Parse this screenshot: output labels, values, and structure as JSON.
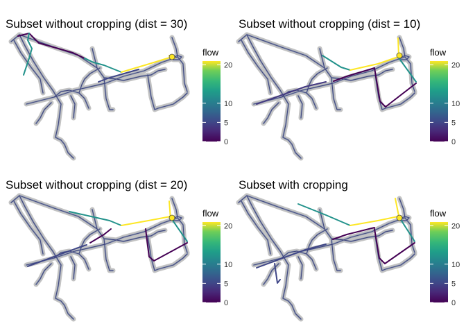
{
  "chart_data": [
    {
      "type": "network-map",
      "title": "Subset without cropping (dist = 30)",
      "legend": {
        "title": "flow",
        "ticks": [
          0,
          5,
          10,
          20
        ],
        "range": [
          0,
          21
        ],
        "colormap": "viridis",
        "placement": "right"
      },
      "grid": false,
      "series": [
        {
          "flow": 0,
          "roads": [
            [
              [
                26,
                52
              ],
              [
                42,
                48
              ],
              [
                56,
                62
              ],
              [
                105,
                76
              ],
              [
                122,
                84
              ]
            ]
          ]
        },
        {
          "flow": 5,
          "roads": [
            [
              [
                142,
                118
              ],
              [
                158,
                112
              ],
              [
                200,
                100
              ]
            ]
          ]
        },
        {
          "flow": 12,
          "roads": [
            [
              [
                42,
                48
              ],
              [
                40,
                58
              ],
              [
                46,
                70
              ],
              [
                42,
                84
              ],
              [
                34,
                108
              ]
            ],
            [
              [
                122,
                84
              ],
              [
                135,
                90
              ],
              [
                150,
                94
              ],
              [
                175,
                104
              ]
            ]
          ]
        },
        {
          "flow": 21,
          "roads": [
            [
              [
                175,
                104
              ],
              [
                212,
                93
              ],
              [
                248,
                82
              ]
            ],
            [
              [
                244,
                80
              ],
              [
                252,
                84
              ]
            ]
          ]
        }
      ]
    },
    {
      "type": "network-map",
      "title": "Subset without cropping (dist = 10)",
      "legend": {
        "title": "flow",
        "ticks": [
          0,
          5,
          10,
          20
        ],
        "range": [
          0,
          21
        ],
        "colormap": "viridis",
        "placement": "right"
      },
      "grid": false,
      "series": [
        {
          "flow": 0,
          "roads": [
            [
              [
                481,
                117
              ],
              [
                500,
                110
              ],
              [
                540,
                98
              ]
            ],
            [
              [
                540,
                98
              ],
              [
                548,
                146
              ],
              [
                556,
                154
              ],
              [
                600,
                120
              ]
            ]
          ]
        },
        {
          "flow": 4,
          "roads": [
            [
              [
                370,
                150
              ],
              [
                440,
                125
              ],
              [
                470,
                118
              ]
            ]
          ]
        },
        {
          "flow": 12,
          "roads": [
            [
              [
                465,
                80
              ],
              [
                492,
                97
              ],
              [
                505,
                101
              ]
            ],
            [
              [
                574,
                82
              ],
              [
                600,
                118
              ]
            ]
          ]
        },
        {
          "flow": 21,
          "roads": [
            [
              [
                505,
                101
              ],
              [
                545,
                92
              ],
              [
                574,
                82
              ]
            ],
            [
              [
                574,
                55
              ],
              [
                575,
                80
              ]
            ]
          ]
        }
      ]
    },
    {
      "type": "network-map",
      "title": "Subset without cropping (dist = 20)",
      "legend": {
        "title": "flow",
        "ticks": [
          0,
          5,
          10,
          20
        ],
        "range": [
          0,
          21
        ],
        "colormap": "viridis",
        "placement": "right"
      },
      "grid": false,
      "series": [
        {
          "flow": 0,
          "roads": [
            [
              [
                130,
                350
              ],
              [
                150,
                338
              ],
              [
                160,
                330
              ]
            ],
            [
              [
                210,
                330
              ],
              [
                215,
                370
              ],
              [
                222,
                376
              ],
              [
                270,
                350
              ]
            ]
          ]
        },
        {
          "flow": 5,
          "roads": [
            [
              [
                40,
                384
              ],
              [
                110,
                358
              ],
              [
                125,
                353
              ]
            ]
          ]
        },
        {
          "flow": 12,
          "roads": [
            [
              [
                100,
                305
              ],
              [
                158,
                318
              ],
              [
                175,
                325
              ]
            ],
            [
              [
                245,
                312
              ],
              [
                270,
                348
              ]
            ]
          ]
        },
        {
          "flow": 21,
          "roads": [
            [
              [
                175,
                325
              ],
              [
                214,
                318
              ],
              [
                246,
                312
              ]
            ],
            [
              [
                244,
                290
              ],
              [
                246,
                316
              ]
            ]
          ]
        }
      ]
    },
    {
      "type": "network-map",
      "title": "Subset with cropping",
      "legend": {
        "title": "flow",
        "ticks": [
          0,
          5,
          10,
          20
        ],
        "range": [
          0,
          21
        ],
        "colormap": "viridis",
        "placement": "right"
      },
      "grid": false,
      "series": [
        {
          "flow": 0,
          "roads": [
            [
              [
                480,
                345
              ],
              [
                500,
                338
              ],
              [
                540,
                328
              ]
            ],
            [
              [
                540,
                330
              ],
              [
                547,
                372
              ],
              [
                555,
                380
              ],
              [
                598,
                350
              ]
            ]
          ]
        },
        {
          "flow": 5,
          "roads": [
            [
              [
                370,
                386
              ],
              [
                440,
                360
              ],
              [
                470,
                352
              ]
            ],
            [
              [
                396,
                380
              ],
              [
                400,
                408
              ],
              [
                404,
                403
              ]
            ]
          ]
        },
        {
          "flow": 12,
          "roads": [
            [
              [
                430,
                294
              ],
              [
                470,
                310
              ],
              [
                505,
                325
              ]
            ],
            [
              [
                575,
                312
              ],
              [
                598,
                348
              ]
            ]
          ]
        },
        {
          "flow": 21,
          "roads": [
            [
              [
                505,
                325
              ],
              [
                545,
                318
              ],
              [
                574,
                312
              ]
            ],
            [
              [
                570,
                286
              ],
              [
                576,
                316
              ]
            ]
          ]
        }
      ]
    }
  ]
}
